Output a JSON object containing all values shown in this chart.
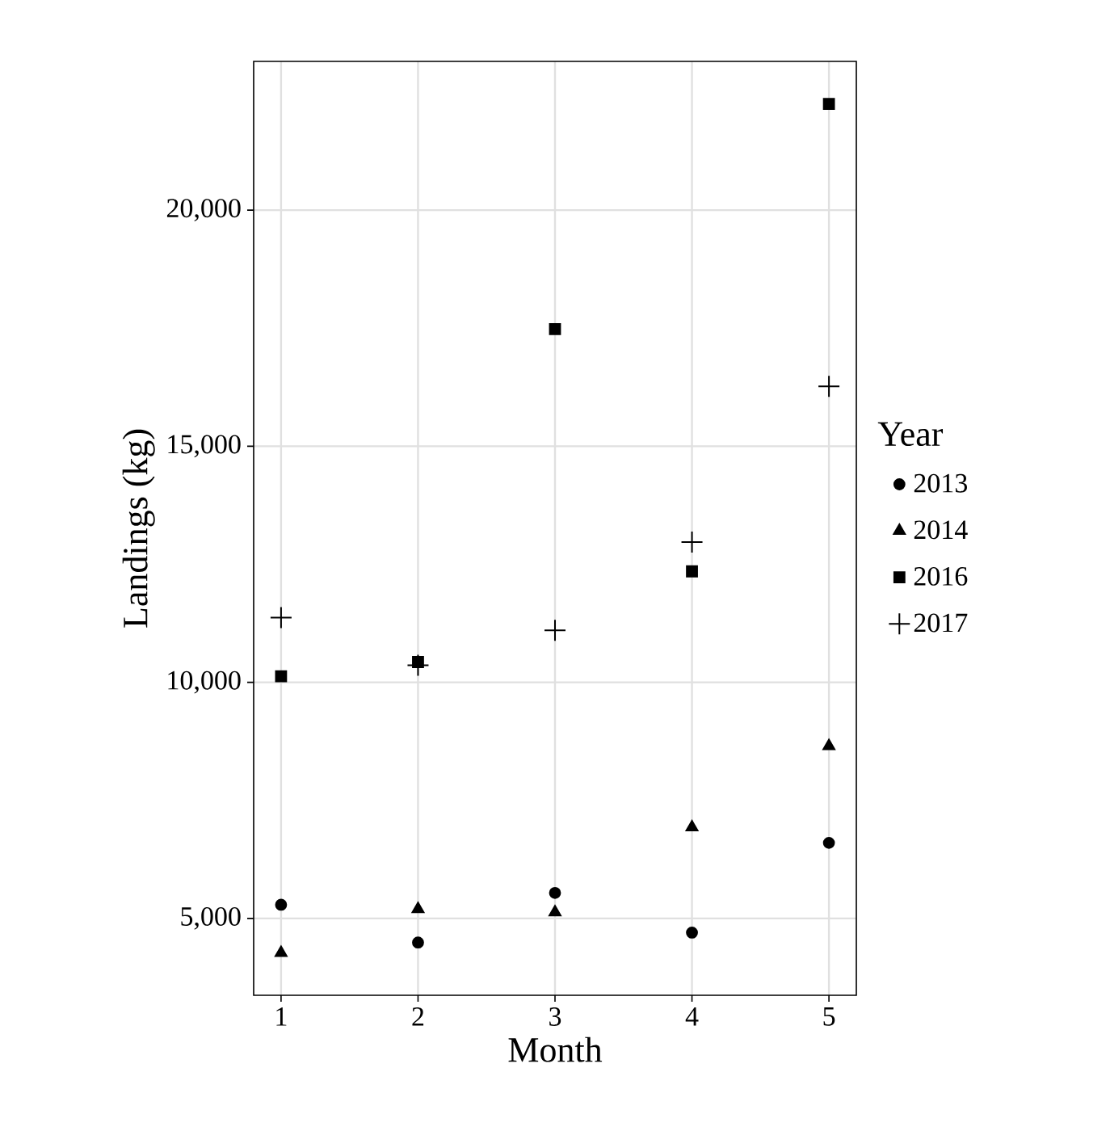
{
  "chart_data": {
    "type": "scatter",
    "xlabel": "Month",
    "ylabel": "Landings (kg)",
    "legend_title": "Year",
    "legend": "right",
    "grid": true,
    "x": [
      1,
      2,
      3,
      4,
      5
    ],
    "xlim": [
      0.8,
      5.2
    ],
    "xticks": [
      1,
      2,
      3,
      4,
      5
    ],
    "ylim": [
      3373,
      23150
    ],
    "yticks": [
      {
        "value": 5000,
        "label": "5,000"
      },
      {
        "value": 10000,
        "label": "10,000"
      },
      {
        "value": 15000,
        "label": "15,000"
      },
      {
        "value": 20000,
        "label": "20,000"
      }
    ],
    "series": [
      {
        "name": "2013",
        "color": "#000000",
        "marker": "circle",
        "values": [
          5290,
          4490,
          5540,
          4700,
          6600
        ]
      },
      {
        "name": "2014",
        "color": "#000000",
        "marker": "triangle",
        "values": [
          4270,
          5200,
          5130,
          6930,
          8650
        ]
      },
      {
        "name": "2016",
        "color": "#000000",
        "marker": "square",
        "values": [
          10130,
          10430,
          17480,
          12350,
          22250
        ]
      },
      {
        "name": "2017",
        "color": "#000000",
        "marker": "cross",
        "values": [
          11370,
          10360,
          11100,
          12970,
          16270
        ]
      }
    ]
  }
}
